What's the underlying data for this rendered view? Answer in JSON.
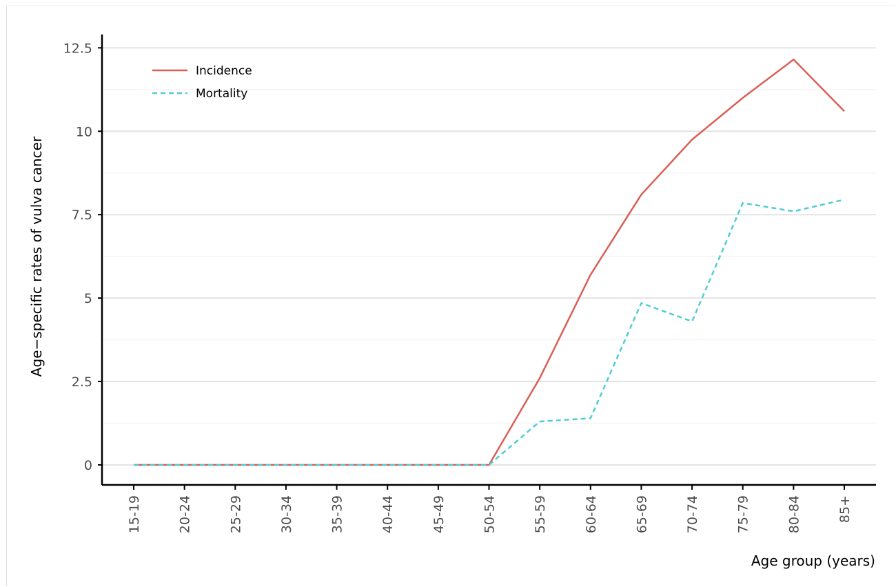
{
  "chart_data": {
    "type": "line",
    "title": "",
    "xlabel": "Age group (years)",
    "ylabel": "Age−specific rates of vulva cancer",
    "categories": [
      "15-19",
      "20-24",
      "25-29",
      "30-34",
      "35-39",
      "40-44",
      "45-49",
      "50-54",
      "55-59",
      "60-64",
      "65-69",
      "70-74",
      "75-79",
      "80-84",
      "85+"
    ],
    "ylim": [
      -0.6,
      12.9
    ],
    "yticks": [
      0,
      2.5,
      5,
      7.5,
      10,
      12.5
    ],
    "ytick_labels": [
      "0",
      "2.5",
      "5",
      "7.5",
      "10",
      "12.5"
    ],
    "grid": true,
    "legend_position": "top-left",
    "series": [
      {
        "name": "Incidence",
        "color": "#d95f55",
        "style": "solid",
        "values": [
          0,
          0,
          0,
          0,
          0,
          0,
          0,
          0,
          2.6,
          5.7,
          8.1,
          9.75,
          11,
          12.15,
          10.6
        ]
      },
      {
        "name": "Mortality",
        "color": "#4ecdd6",
        "style": "dashed",
        "values": [
          0,
          0,
          0,
          0,
          0,
          0,
          0,
          0,
          1.3,
          1.4,
          4.85,
          4.3,
          7.85,
          7.6,
          7.95
        ]
      }
    ]
  }
}
